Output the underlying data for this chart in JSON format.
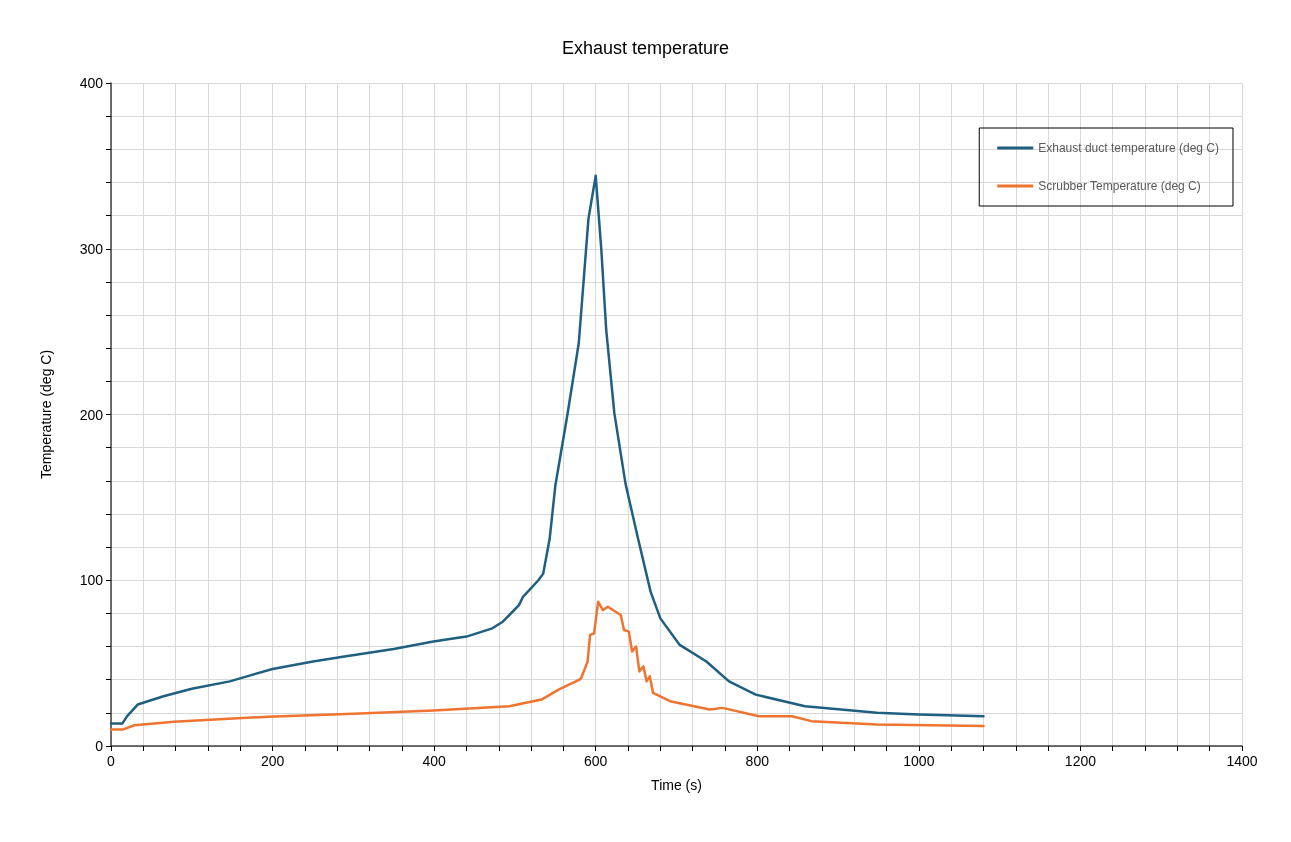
{
  "chart_data": {
    "type": "line",
    "title": "Exhaust temperature",
    "xlabel": "Time (s)",
    "ylabel": "Temperature (deg C)",
    "series": [
      {
        "name": "Exhaust duct temperature (deg C)",
        "color": "#1f5f80",
        "x": [
          0,
          14,
          20,
          33,
          65,
          100,
          147,
          200,
          250,
          289,
          350,
          399,
          440,
          472,
          485,
          505,
          510,
          529,
          535,
          543,
          550,
          565,
          579,
          591,
          600,
          607,
          613,
          623,
          637,
          652,
          668,
          680,
          704,
          737,
          765,
          798,
          859,
          948,
          1000,
          1080
        ],
        "values": [
          13.5,
          13.5,
          18,
          25,
          30,
          34.5,
          39,
          46.5,
          51,
          54,
          58.5,
          63,
          66,
          71,
          75,
          85,
          90,
          100,
          104,
          125,
          157,
          200,
          243,
          318,
          344,
          299,
          251,
          201,
          158,
          126,
          93,
          77,
          61,
          51,
          39,
          31,
          24,
          20,
          19,
          18
        ]
      },
      {
        "name": "Scrubber Temperature (deg C)",
        "color": "#ee7430",
        "x": [
          0,
          15,
          29,
          78,
          195,
          300,
          399,
          493,
          533,
          554,
          580,
          582,
          590,
          593,
          598,
          603,
          609,
          615,
          631,
          635,
          641,
          645,
          650,
          654,
          659,
          663,
          667,
          671,
          692,
          741,
          757,
          802,
          843,
          867,
          948,
          1080
        ],
        "values": [
          10,
          10,
          12.5,
          14.7,
          17.7,
          19.5,
          21.4,
          24,
          28,
          34,
          40,
          41,
          51,
          67,
          68,
          87,
          82,
          84,
          79,
          70,
          69,
          57,
          60,
          45,
          48,
          39,
          42,
          32,
          27,
          22,
          23,
          18,
          18,
          15,
          13,
          12
        ]
      }
    ],
    "xlim": [
      0,
      1400
    ],
    "xticks": [
      0,
      200,
      400,
      600,
      800,
      1000,
      1200,
      1400
    ],
    "ylim": [
      0,
      400
    ],
    "yticks": [
      0,
      100,
      200,
      300,
      400
    ],
    "grid": true,
    "legend": "top right",
    "marker": "none",
    "line_style": "solid"
  }
}
